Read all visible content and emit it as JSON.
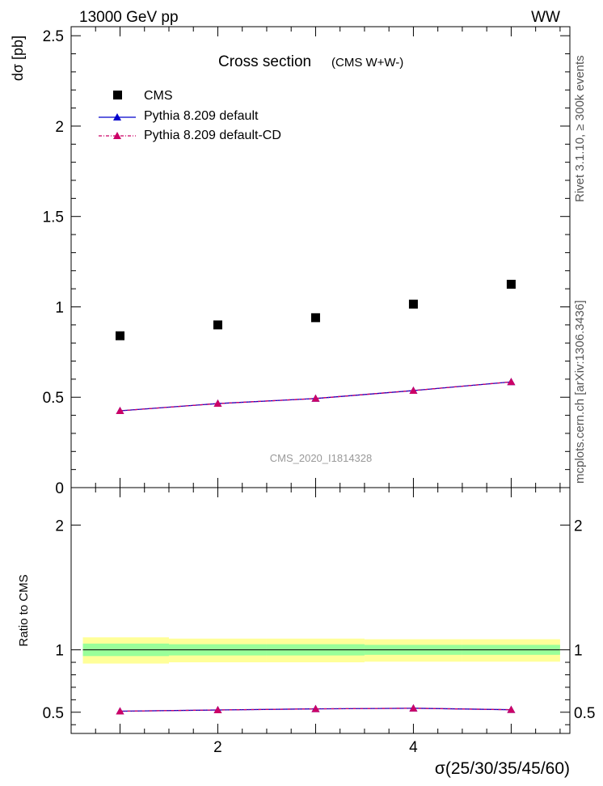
{
  "header": {
    "left": "13000 GeV pp",
    "right": "WW"
  },
  "side": {
    "rivet": "Rivet 3.1.10, ≥ 300k events",
    "mcplots": "mcplots.cern.ch [arXiv:1306.3436]"
  },
  "colors": {
    "data": "#000000",
    "pythia_default": "#0000cc",
    "pythia_cd": "#cc0066",
    "band_inner": "#99ff99",
    "band_outer": "#ffff99"
  },
  "chart_data": [
    {
      "type": "scatter",
      "panel": "main",
      "title": "Cross section",
      "subtitle": "(CMS W+W-)",
      "watermark": "CMS_2020_I1814328",
      "ylabel": "dσ [pb]",
      "xlim": [
        0.5,
        5.6
      ],
      "ylim": [
        0,
        2.55
      ],
      "yticks": [
        0,
        0.5,
        1,
        1.5,
        2,
        2.5
      ],
      "ytick_labels": [
        "0",
        "0.5",
        "1",
        "1.5",
        "2",
        "2.5"
      ],
      "legend_position": "top-left",
      "x": [
        1,
        2,
        3,
        4,
        5
      ],
      "series": [
        {
          "name": "CMS",
          "marker": "square",
          "values": [
            0.84,
            0.9,
            0.94,
            1.015,
            1.125
          ]
        },
        {
          "name": "Pythia 8.209 default",
          "marker": "triangle",
          "line": "solid",
          "values": [
            0.425,
            0.465,
            0.493,
            0.537,
            0.585
          ]
        },
        {
          "name": "Pythia 8.209 default-CD",
          "marker": "triangle",
          "line": "dashdot",
          "values": [
            0.425,
            0.465,
            0.493,
            0.537,
            0.585
          ]
        }
      ]
    },
    {
      "type": "line",
      "panel": "ratio",
      "ylabel": "Ratio to CMS",
      "xlabel": "σ(25/30/35/45/60)",
      "xlim": [
        0.5,
        5.6
      ],
      "ylim": [
        0.33,
        2.3
      ],
      "yticks": [
        0.5,
        1,
        2
      ],
      "ytick_labels": [
        "0.5",
        "1",
        "2"
      ],
      "xticks": [
        2,
        4
      ],
      "xtick_labels": [
        "2",
        "4"
      ],
      "x": [
        1,
        2,
        3,
        4,
        5
      ],
      "bands": [
        {
          "kind": "outer",
          "lower": [
            0.89,
            0.9,
            0.9,
            0.905,
            0.905
          ],
          "upper": [
            1.1,
            1.09,
            1.09,
            1.085,
            1.085
          ]
        },
        {
          "kind": "inner",
          "lower": [
            0.95,
            0.955,
            0.955,
            0.96,
            0.96
          ],
          "upper": [
            1.05,
            1.045,
            1.045,
            1.04,
            1.04
          ]
        }
      ],
      "series": [
        {
          "name": "Pythia 8.209 default",
          "values": [
            0.508,
            0.518,
            0.527,
            0.532,
            0.52
          ]
        },
        {
          "name": "Pythia 8.209 default-CD",
          "values": [
            0.508,
            0.518,
            0.527,
            0.532,
            0.52
          ]
        }
      ]
    }
  ]
}
